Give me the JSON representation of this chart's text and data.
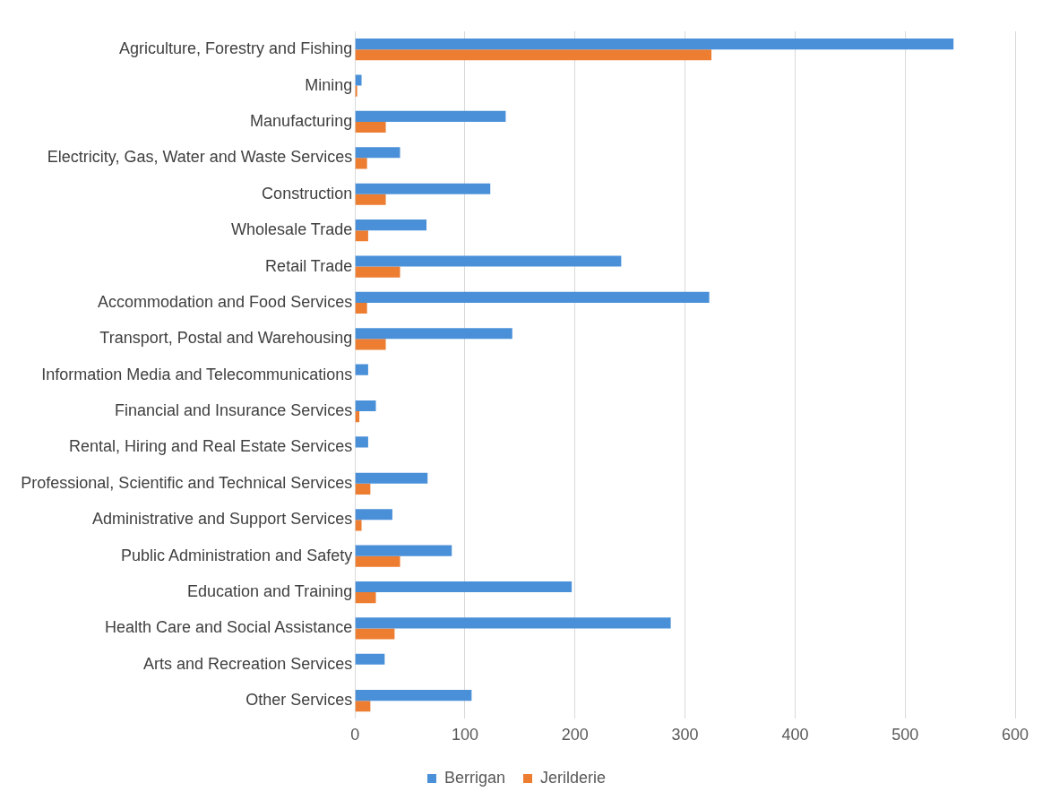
{
  "chart_data": {
    "type": "bar",
    "orientation": "horizontal",
    "categories": [
      "Agriculture, Forestry and Fishing",
      "Mining",
      "Manufacturing",
      "Electricity, Gas, Water and Waste Services",
      "Construction",
      "Wholesale Trade",
      "Retail Trade",
      "Accommodation and Food Services",
      "Transport, Postal and Warehousing",
      "Information Media and Telecommunications",
      "Financial and Insurance Services",
      "Rental, Hiring and Real Estate Services",
      "Professional, Scientific and Technical Services",
      "Administrative and Support Services",
      "Public Administration and Safety",
      "Education and Training",
      "Health Care and Social Assistance",
      "Arts and Recreation Services",
      "Other Services"
    ],
    "series": [
      {
        "name": "Berrigan",
        "color": "#4a90d9",
        "values": [
          544,
          6,
          137,
          41,
          123,
          65,
          242,
          322,
          143,
          12,
          19,
          12,
          66,
          34,
          88,
          197,
          287,
          27,
          106
        ]
      },
      {
        "name": "Jerilderie",
        "color": "#ed7d31",
        "values": [
          324,
          2,
          28,
          11,
          28,
          12,
          41,
          11,
          28,
          0,
          4,
          null,
          14,
          6,
          41,
          19,
          36,
          null,
          14
        ]
      }
    ],
    "xlim": [
      0,
      600
    ],
    "xticks": [
      0,
      100,
      200,
      300,
      400,
      500,
      600
    ],
    "grid": "x",
    "legend": "bottom"
  }
}
